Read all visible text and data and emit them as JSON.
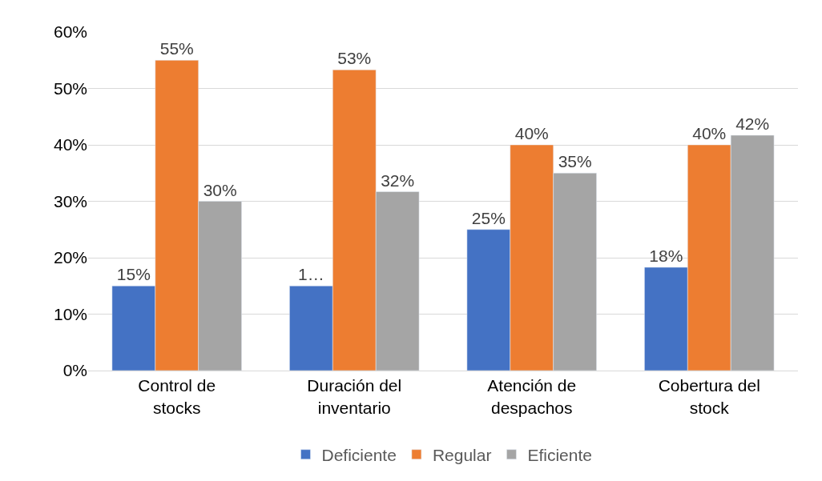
{
  "chart_data": {
    "type": "bar",
    "categories": [
      "Control de stocks",
      "Duración del inventario",
      "Atención de despachos",
      "Cobertura del stock"
    ],
    "series": [
      {
        "name": "Deficiente",
        "color": "#4472c4",
        "values": [
          15,
          15,
          25,
          18.3
        ],
        "value_labels": [
          "15%",
          "1…",
          "25%",
          "18%"
        ]
      },
      {
        "name": "Regular",
        "color": "#ed7d31",
        "values": [
          55,
          53.3,
          40,
          40
        ],
        "value_labels": [
          "55%",
          "53%",
          "40%",
          "40%"
        ]
      },
      {
        "name": "Eficiente",
        "color": "#a5a5a5",
        "values": [
          30,
          31.7,
          35,
          41.7
        ],
        "value_labels": [
          "30%",
          "32%",
          "35%",
          "42%"
        ]
      }
    ],
    "ylim": [
      0,
      60
    ],
    "yticks": [
      {
        "value": 0,
        "label": "0%"
      },
      {
        "value": 10,
        "label": "10%"
      },
      {
        "value": 20,
        "label": "20%"
      },
      {
        "value": 30,
        "label": "30%"
      },
      {
        "value": 40,
        "label": "40%"
      },
      {
        "value": 50,
        "label": "50%"
      },
      {
        "value": 60,
        "label": "60%"
      }
    ],
    "grid": "y",
    "legend": "bottom"
  }
}
